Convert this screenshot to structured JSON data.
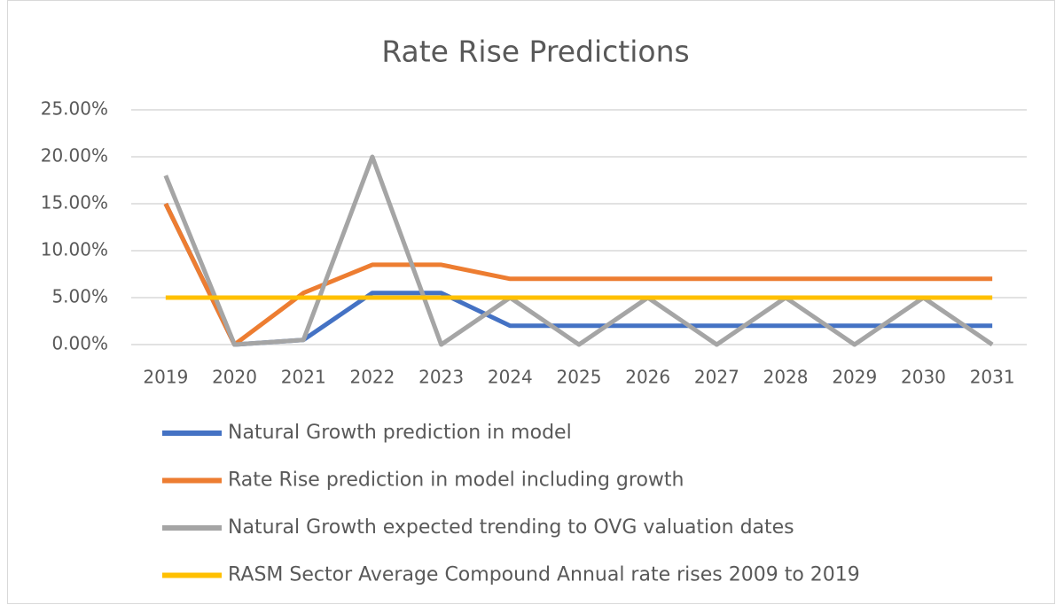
{
  "chart_data": {
    "type": "line",
    "title": "Rate Rise Predictions",
    "categories": [
      "2019",
      "2020",
      "2021",
      "2022",
      "2023",
      "2024",
      "2025",
      "2026",
      "2027",
      "2028",
      "2029",
      "2030",
      "2031"
    ],
    "series": [
      {
        "name": "Natural Growth prediction in model",
        "color": "#4472c4",
        "values": [
          15,
          0,
          0.5,
          5.5,
          5.5,
          2,
          2,
          2,
          2,
          2,
          2,
          2,
          2
        ]
      },
      {
        "name": "Rate Rise prediction in model including growth",
        "color": "#ed7d31",
        "values": [
          15,
          0,
          5.5,
          8.5,
          8.5,
          7,
          7,
          7,
          7,
          7,
          7,
          7,
          7
        ]
      },
      {
        "name": "Natural Growth expected trending to OVG valuation dates",
        "color": "#a5a5a5",
        "values": [
          18,
          0,
          0.5,
          20,
          0,
          5,
          0,
          5,
          0,
          5,
          0,
          5,
          0
        ]
      },
      {
        "name": "RASM Sector Average Compound Annual rate rises 2009 to 2019",
        "color": "#ffc000",
        "values": [
          5,
          5,
          5,
          5,
          5,
          5,
          5,
          5,
          5,
          5,
          5,
          5,
          5
        ]
      }
    ],
    "ylim": [
      0,
      25
    ],
    "yticks": [
      {
        "value": 0,
        "label": "0.00%"
      },
      {
        "value": 5,
        "label": "5.00%"
      },
      {
        "value": 10,
        "label": "10.00%"
      },
      {
        "value": 15,
        "label": "15.00%"
      },
      {
        "value": 20,
        "label": "20.00%"
      },
      {
        "value": 25,
        "label": "25.00%"
      }
    ],
    "grid": true,
    "legend": "bottom"
  }
}
